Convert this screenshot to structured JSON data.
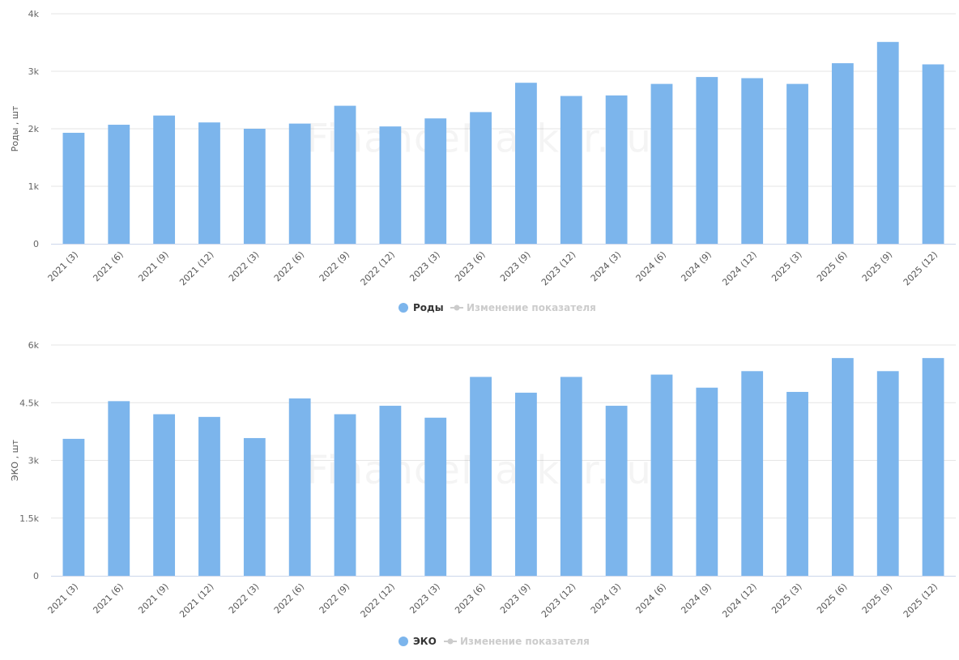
{
  "watermark": "FinanceMarker.ru",
  "colors": {
    "bar": "#7cb5ec",
    "legend_inactive": "#cccccc",
    "grid": "#e6e6e6"
  },
  "chart_data": [
    {
      "type": "bar",
      "ylabel": "Роды , шт",
      "yticks": [
        "0",
        "1k",
        "2k",
        "3k",
        "4k"
      ],
      "ylim": [
        0,
        4000
      ],
      "categories": [
        "2021 (3)",
        "2021 (6)",
        "2021 (9)",
        "2021 (12)",
        "2022 (3)",
        "2022 (6)",
        "2022 (9)",
        "2022 (12)",
        "2023 (3)",
        "2023 (6)",
        "2023 (9)",
        "2023 (12)",
        "2024 (3)",
        "2024 (6)",
        "2024 (9)",
        "2024 (12)",
        "2025 (3)",
        "2025 (6)",
        "2025 (9)",
        "2025 (12)"
      ],
      "series": [
        {
          "name": "Роды",
          "values": [
            1930,
            2070,
            2230,
            2110,
            2000,
            2090,
            2400,
            2040,
            2180,
            2290,
            2800,
            2570,
            2580,
            2780,
            2900,
            2880,
            2780,
            3140,
            3510,
            3120
          ]
        }
      ],
      "legend": [
        "Роды",
        "Изменение показателя"
      ],
      "grid": true
    },
    {
      "type": "bar",
      "ylabel": "ЭКО , шт",
      "yticks": [
        "0",
        "1.5k",
        "3k",
        "4.5k",
        "6k"
      ],
      "ylim": [
        0,
        6000
      ],
      "categories": [
        "2021 (3)",
        "2021 (6)",
        "2021 (9)",
        "2021 (12)",
        "2022 (3)",
        "2022 (6)",
        "2022 (9)",
        "2022 (12)",
        "2023 (3)",
        "2023 (6)",
        "2023 (9)",
        "2023 (12)",
        "2024 (3)",
        "2024 (6)",
        "2024 (9)",
        "2024 (12)",
        "2025 (3)",
        "2025 (6)",
        "2025 (9)",
        "2025 (12)"
      ],
      "series": [
        {
          "name": "ЭКО",
          "values": [
            3560,
            4540,
            4200,
            4130,
            3580,
            4610,
            4200,
            4420,
            4110,
            5170,
            4760,
            5170,
            4420,
            5230,
            4890,
            5320,
            4780,
            5660,
            5320,
            5660
          ]
        }
      ],
      "legend": [
        "ЭКО",
        "Изменение показателя"
      ],
      "grid": true
    }
  ]
}
